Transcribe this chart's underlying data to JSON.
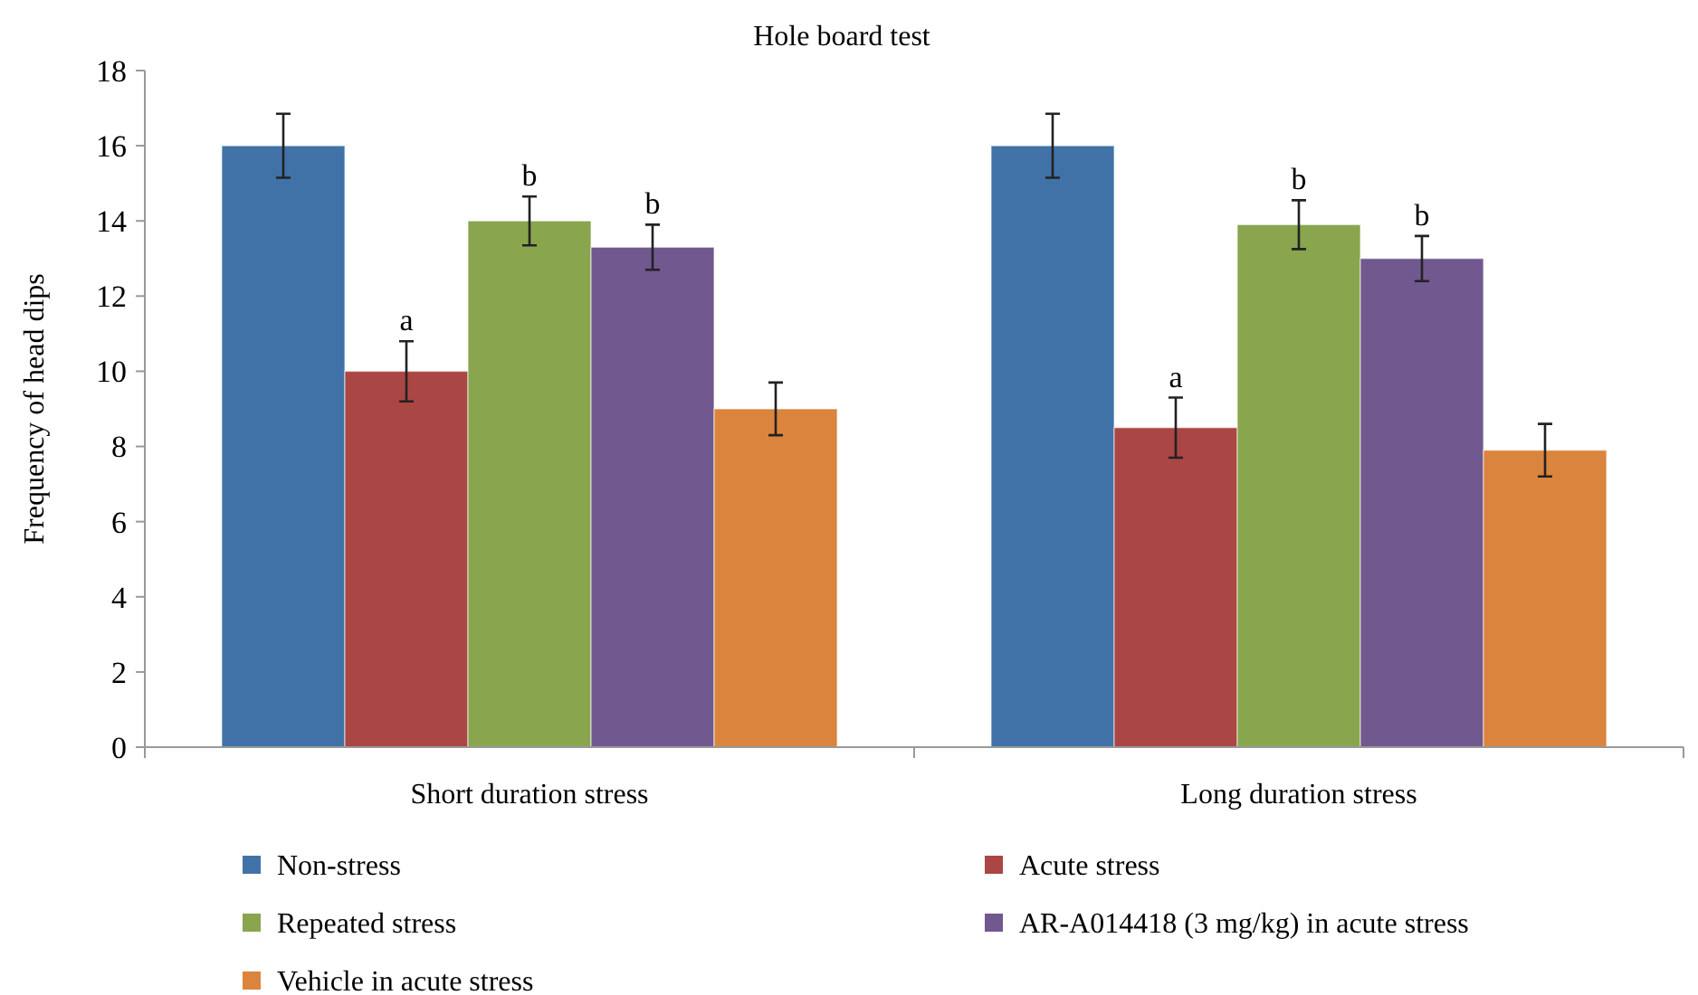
{
  "chart_data": {
    "type": "bar",
    "title": "Hole board test",
    "ylabel": "Frequency of head dips",
    "categories": [
      "Short duration stress",
      "Long duration stress"
    ],
    "ylim": [
      0,
      18
    ],
    "yticks": [
      0,
      2,
      4,
      6,
      8,
      10,
      12,
      14,
      16,
      18
    ],
    "grid": false,
    "legend": "bottom",
    "series": [
      {
        "name": "Non-stress",
        "color": "#4072a8",
        "values": [
          16,
          16
        ],
        "errors": [
          0.85,
          0.85
        ]
      },
      {
        "name": "Acute stress",
        "color": "#aa4643",
        "values": [
          10,
          8.5
        ],
        "errors": [
          0.8,
          0.8
        ],
        "value_labels": [
          "a",
          "a"
        ]
      },
      {
        "name": "Repeated stress",
        "color": "#89a54e",
        "values": [
          14,
          13.9
        ],
        "errors": [
          0.65,
          0.65
        ],
        "value_labels": [
          "b",
          "b"
        ]
      },
      {
        "name": "AR-A014418 (3 mg/kg) in acute stress",
        "color": "#71588f",
        "values": [
          13.3,
          13.0
        ],
        "errors": [
          0.6,
          0.6
        ],
        "value_labels": [
          "b",
          "b"
        ]
      },
      {
        "name": "Vehicle in acute stress",
        "color": "#db843d",
        "values": [
          9,
          7.9
        ],
        "errors": [
          0.7,
          0.7
        ]
      }
    ]
  }
}
